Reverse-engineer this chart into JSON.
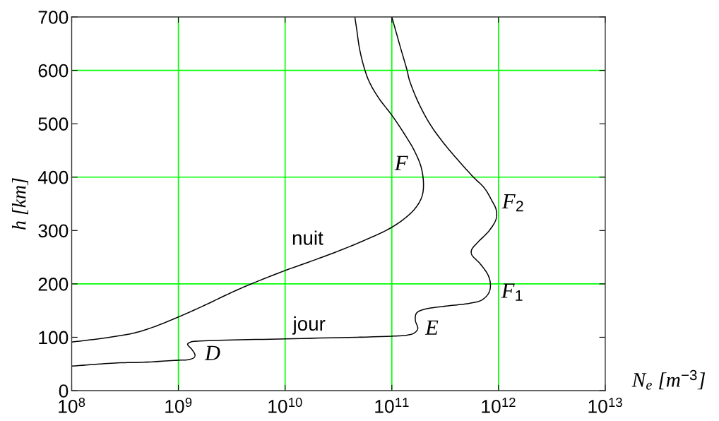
{
  "chart_data": {
    "type": "line",
    "xlabel": "N$_{e}$ [m$^{−3}$]",
    "ylabel": "h [km]",
    "log": "x",
    "xlim": [
      100000000.0,
      10000000000000.0
    ],
    "ylim": [
      0,
      700
    ],
    "xticks": [
      {
        "value": 100000000.0,
        "label": "10$^{8}$"
      },
      {
        "value": 1000000000.0,
        "label": "10$^{9}$"
      },
      {
        "value": 10000000000.0,
        "label": "10$^{10}$"
      },
      {
        "value": 100000000000.0,
        "label": "10$^{11}$"
      },
      {
        "value": 1000000000000.0,
        "label": "10$^{12}$"
      },
      {
        "value": 10000000000000.0,
        "label": "10$^{13}$"
      }
    ],
    "yticks": [
      0,
      100,
      200,
      300,
      400,
      500,
      600,
      700
    ],
    "line_style": "solid",
    "marker": "none",
    "ref_lines": [
      {
        "axis": "x",
        "value": 1000000000.0,
        "color": "#00ff00"
      },
      {
        "axis": "x",
        "value": 10000000000.0,
        "color": "#00ff00"
      },
      {
        "axis": "x",
        "value": 100000000000.0,
        "color": "#00ff00"
      },
      {
        "axis": "x",
        "value": 1000000000000.0,
        "color": "#00ff00"
      },
      {
        "axis": "y",
        "value": 200,
        "color": "#00ff00"
      },
      {
        "axis": "y",
        "value": 400,
        "color": "#00ff00"
      },
      {
        "axis": "y",
        "value": 600,
        "color": "#00ff00"
      }
    ],
    "series": [
      {
        "color": "#000000",
        "x": [
          100000000.0,
          210000000.0,
          385000000.0,
          580000000.0,
          1000000000.0,
          1680000000.0,
          3400000000.0,
          5100000000.0,
          10000000000.0,
          26000000000.0,
          56000000000.0,
          100000000000.0,
          146000000000.0,
          175000000000.0,
          193000000000.0,
          198000000000.0,
          188000000000.0,
          162000000000.0,
          132000000000.0,
          100000000000.0,
          76000000000.0,
          62000000000.0,
          56000000000.0,
          50000000000.0,
          46700000000.0,
          45000000000.0
        ],
        "values": [
          91,
          99,
          108,
          119,
          138,
          158,
          187,
          202,
          225,
          255,
          282,
          306,
          330,
          348,
          366,
          388,
          419,
          450,
          480,
          516,
          547,
          577,
          600,
          639,
          679,
          700
        ]
      },
      {
        "color": "#000000",
        "x": [
          100000000.0,
          270000000.0,
          450000000.0,
          1000000000.0,
          1240000000.0,
          1400000000.0,
          1430000000.0,
          1340000000.0,
          1220000000.0,
          1300000000.0,
          1600000000.0,
          10000000000.0,
          100000000000.0,
          139000000000.0,
          162000000000.0,
          175000000000.0,
          166000000000.0,
          170000000000.0,
          198000000000.0,
          310000000000.0,
          550000000000.0,
          700000000000.0,
          810000000000.0,
          840000000000.0,
          800000000000.0,
          670000000000.0,
          560000000000.0,
          560000000000.0,
          640000000000.0,
          820000000000.0,
          950000000000.0,
          950000000000.0,
          860000000000.0,
          740000000000.0,
          575000000000.0,
          400000000000.0,
          297000000000.0,
          230000000000.0,
          179000000000.0,
          146000000000.0,
          139000000000.0,
          122000000000.0,
          100000000000.0
        ],
        "values": [
          46,
          52,
          53,
          57,
          58,
          62,
          67,
          77,
          87,
          91,
          93,
          97,
          102,
          104,
          108,
          116,
          132,
          145,
          152,
          158,
          164,
          170,
          183,
          198,
          216,
          238,
          255,
          264,
          278,
          300,
          322,
          339,
          357,
          379,
          401,
          436,
          467,
          498,
          538,
          582,
          600,
          639,
          700
        ]
      }
    ],
    "annotations": [
      {
        "text": "nuit",
        "x": 26000000000.0,
        "y": 255
      },
      {
        "text": "jour",
        "x": 10000000000.0,
        "y": 97
      },
      {
        "text": "D",
        "x": 1430000000.0,
        "y": 67
      },
      {
        "text": "E",
        "x": 175000000000.0,
        "y": 116
      },
      {
        "text": "F",
        "x": 188000000000.0,
        "y": 419
      },
      {
        "text": "F$_{1}$",
        "x": 840000000000.0,
        "y": 198
      },
      {
        "text": "F$_{2}$",
        "x": 950000000000.0,
        "y": 339
      }
    ]
  }
}
